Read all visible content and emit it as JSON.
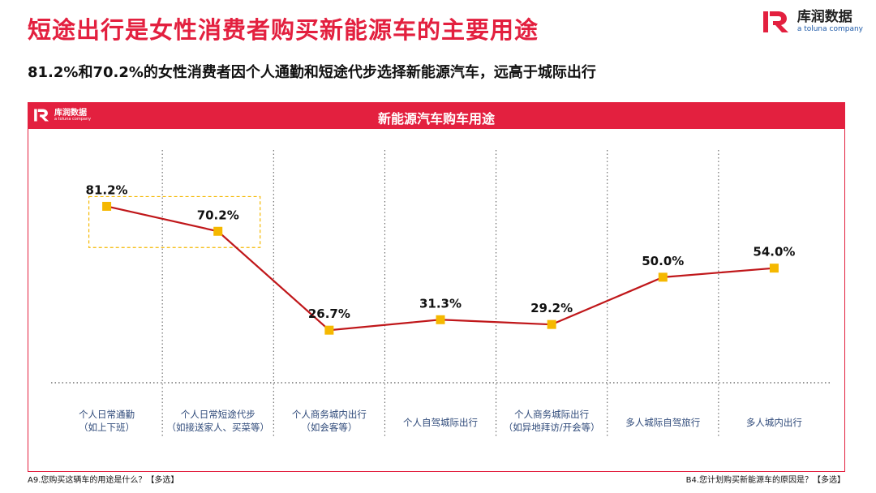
{
  "header": {
    "title": "短途出行是女性消费者购买新能源车的主要用途",
    "subtitle": "81.2%和70.2%的女性消费者因个人通勤和短途代步选择新能源汽车，远高于城际出行"
  },
  "brand": {
    "name": "库润数据",
    "tagline": "a toluna company",
    "logo_icon": "kr-logo-icon",
    "color": "#e3203f"
  },
  "panel": {
    "title": "新能源汽车购车用途",
    "logo_name": "库润数据",
    "logo_tagline": "a toluna company"
  },
  "footnotes": {
    "left": "A9.您购买这辆车的用途是什么？【多选】",
    "right": "B4.您计划购买新能源车的原因是？【多选】"
  },
  "colors": {
    "accent": "#e3203f",
    "line": "#c0171a",
    "marker": "#f5b800",
    "highlight_box": "#f5b800"
  },
  "chart_data": {
    "type": "line",
    "title": "新能源汽车购车用途",
    "categories": [
      [
        "个人日常通勤",
        "（如上下班）"
      ],
      [
        "个人日常短途代步",
        "（如接送家人、买菜等）"
      ],
      [
        "个人商务城内出行",
        "（如会客等）"
      ],
      [
        "个人自驾城际出行"
      ],
      [
        "个人商务城际出行",
        "（如异地拜访/开会等）"
      ],
      [
        "多人城际自驾旅行"
      ],
      [
        "多人城内出行"
      ]
    ],
    "values": [
      81.2,
      70.2,
      26.7,
      31.3,
      29.2,
      50.0,
      54.0
    ],
    "value_labels": [
      "81.2%",
      "70.2%",
      "26.7%",
      "31.3%",
      "29.2%",
      "50.0%",
      "54.0%"
    ],
    "ylim": [
      0,
      100
    ],
    "highlighted": [
      0,
      1
    ],
    "xlabel": "",
    "ylabel": "",
    "grid": false
  }
}
